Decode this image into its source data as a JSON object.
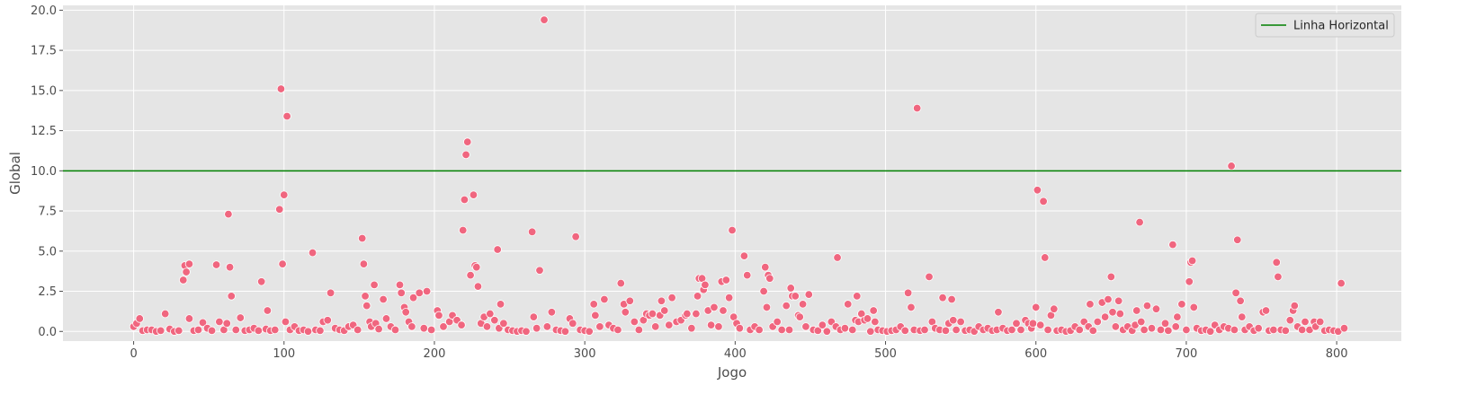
{
  "colors": {
    "background": "#e5e5e5",
    "grid": "#ffffff",
    "points": "#f0667f",
    "hline": "#008000"
  },
  "chart_data": {
    "type": "scatter",
    "xlabel": "Jogo",
    "ylabel": "Global",
    "xlim": [
      -47,
      843
    ],
    "ylim": [
      -0.6,
      20.3
    ],
    "xticks": [
      0,
      100,
      200,
      300,
      400,
      500,
      600,
      700,
      800
    ],
    "yticks": [
      0.0,
      2.5,
      5.0,
      7.5,
      10.0,
      12.5,
      15.0,
      17.5,
      20.0
    ],
    "ytick_labels": [
      "0.0",
      "2.5",
      "5.0",
      "7.5",
      "10.0",
      "12.5",
      "15.0",
      "17.5",
      "20.0"
    ],
    "grid": true,
    "legend": {
      "position": "top-right",
      "entries": [
        {
          "label": "Linha Horizontal",
          "type": "line"
        }
      ]
    },
    "hline": {
      "y": 10,
      "label": "Linha Horizontal"
    },
    "points": [
      [
        0,
        0.3
      ],
      [
        2,
        0.5
      ],
      [
        4,
        0.8
      ],
      [
        6,
        0.05
      ],
      [
        9,
        0.1
      ],
      [
        12,
        0.1
      ],
      [
        15,
        0.0
      ],
      [
        18,
        0.05
      ],
      [
        21,
        1.1
      ],
      [
        24,
        0.15
      ],
      [
        27,
        0.0
      ],
      [
        30,
        0.05
      ],
      [
        33,
        3.2
      ],
      [
        34,
        4.1
      ],
      [
        35,
        3.7
      ],
      [
        37,
        4.2
      ],
      [
        37,
        0.8
      ],
      [
        40,
        0.05
      ],
      [
        43,
        0.1
      ],
      [
        46,
        0.55
      ],
      [
        49,
        0.2
      ],
      [
        52,
        0.05
      ],
      [
        55,
        4.15
      ],
      [
        57,
        0.6
      ],
      [
        60,
        0.1
      ],
      [
        62,
        0.5
      ],
      [
        63,
        7.3
      ],
      [
        64,
        4.0
      ],
      [
        65,
        2.2
      ],
      [
        68,
        0.1
      ],
      [
        71,
        0.85
      ],
      [
        74,
        0.05
      ],
      [
        77,
        0.1
      ],
      [
        80,
        0.2
      ],
      [
        83,
        0.05
      ],
      [
        85,
        3.1
      ],
      [
        88,
        0.15
      ],
      [
        89,
        1.3
      ],
      [
        91,
        0.05
      ],
      [
        94,
        0.1
      ],
      [
        97,
        7.6
      ],
      [
        98,
        15.1
      ],
      [
        99,
        4.2
      ],
      [
        100,
        8.5
      ],
      [
        101,
        0.6
      ],
      [
        102,
        13.4
      ],
      [
        104,
        0.1
      ],
      [
        107,
        0.3
      ],
      [
        110,
        0.05
      ],
      [
        113,
        0.1
      ],
      [
        116,
        0.0
      ],
      [
        119,
        4.9
      ],
      [
        121,
        0.1
      ],
      [
        124,
        0.05
      ],
      [
        126,
        0.6
      ],
      [
        129,
        0.7
      ],
      [
        131,
        2.4
      ],
      [
        134,
        0.2
      ],
      [
        137,
        0.1
      ],
      [
        140,
        0.05
      ],
      [
        143,
        0.3
      ],
      [
        146,
        0.4
      ],
      [
        149,
        0.1
      ],
      [
        152,
        5.8
      ],
      [
        153,
        4.2
      ],
      [
        154,
        2.2
      ],
      [
        155,
        1.6
      ],
      [
        157,
        0.6
      ],
      [
        158,
        0.3
      ],
      [
        160,
        2.9
      ],
      [
        161,
        0.5
      ],
      [
        163,
        0.15
      ],
      [
        166,
        2.0
      ],
      [
        168,
        0.8
      ],
      [
        171,
        0.3
      ],
      [
        174,
        0.1
      ],
      [
        177,
        2.9
      ],
      [
        178,
        2.4
      ],
      [
        180,
        1.5
      ],
      [
        181,
        1.2
      ],
      [
        183,
        0.6
      ],
      [
        185,
        0.3
      ],
      [
        186,
        2.1
      ],
      [
        190,
        2.4
      ],
      [
        193,
        0.2
      ],
      [
        195,
        2.5
      ],
      [
        198,
        0.1
      ],
      [
        202,
        1.3
      ],
      [
        203,
        1.0
      ],
      [
        206,
        0.3
      ],
      [
        210,
        0.6
      ],
      [
        212,
        1.0
      ],
      [
        215,
        0.7
      ],
      [
        218,
        0.4
      ],
      [
        219,
        6.3
      ],
      [
        220,
        8.2
      ],
      [
        221,
        11.0
      ],
      [
        222,
        11.8
      ],
      [
        224,
        3.5
      ],
      [
        226,
        8.5
      ],
      [
        227,
        4.1
      ],
      [
        228,
        4.0
      ],
      [
        229,
        2.8
      ],
      [
        231,
        0.5
      ],
      [
        233,
        0.9
      ],
      [
        235,
        0.3
      ],
      [
        237,
        1.1
      ],
      [
        240,
        0.7
      ],
      [
        242,
        5.1
      ],
      [
        243,
        0.2
      ],
      [
        244,
        1.7
      ],
      [
        246,
        0.5
      ],
      [
        249,
        0.1
      ],
      [
        252,
        0.05
      ],
      [
        255,
        0.0
      ],
      [
        258,
        0.05
      ],
      [
        261,
        0.0
      ],
      [
        265,
        6.2
      ],
      [
        266,
        0.9
      ],
      [
        268,
        0.2
      ],
      [
        270,
        3.8
      ],
      [
        273,
        19.4
      ],
      [
        275,
        0.3
      ],
      [
        278,
        1.2
      ],
      [
        281,
        0.1
      ],
      [
        284,
        0.05
      ],
      [
        287,
        0.0
      ],
      [
        290,
        0.8
      ],
      [
        292,
        0.5
      ],
      [
        294,
        5.9
      ],
      [
        297,
        0.1
      ],
      [
        300,
        0.05
      ],
      [
        303,
        0.0
      ],
      [
        306,
        1.7
      ],
      [
        307,
        1.0
      ],
      [
        310,
        0.3
      ],
      [
        313,
        2.0
      ],
      [
        316,
        0.4
      ],
      [
        319,
        0.2
      ],
      [
        322,
        0.1
      ],
      [
        324,
        3.0
      ],
      [
        326,
        1.7
      ],
      [
        327,
        1.2
      ],
      [
        330,
        1.9
      ],
      [
        333,
        0.6
      ],
      [
        336,
        0.1
      ],
      [
        339,
        0.7
      ],
      [
        341,
        1.1
      ],
      [
        343,
        1.0
      ],
      [
        345,
        1.1
      ],
      [
        347,
        0.3
      ],
      [
        350,
        1.0
      ],
      [
        351,
        1.9
      ],
      [
        353,
        1.3
      ],
      [
        356,
        0.4
      ],
      [
        358,
        2.1
      ],
      [
        361,
        0.6
      ],
      [
        364,
        0.7
      ],
      [
        367,
        1.0
      ],
      [
        368,
        1.1
      ],
      [
        371,
        0.2
      ],
      [
        374,
        1.1
      ],
      [
        375,
        2.2
      ],
      [
        376,
        3.3
      ],
      [
        378,
        3.3
      ],
      [
        379,
        2.6
      ],
      [
        380,
        2.9
      ],
      [
        382,
        1.3
      ],
      [
        384,
        0.4
      ],
      [
        386,
        1.5
      ],
      [
        389,
        0.3
      ],
      [
        391,
        3.1
      ],
      [
        392,
        1.3
      ],
      [
        394,
        3.2
      ],
      [
        396,
        2.1
      ],
      [
        398,
        6.3
      ],
      [
        399,
        0.9
      ],
      [
        401,
        0.5
      ],
      [
        403,
        0.2
      ],
      [
        406,
        4.7
      ],
      [
        408,
        3.5
      ],
      [
        410,
        0.1
      ],
      [
        413,
        0.3
      ],
      [
        416,
        0.1
      ],
      [
        419,
        2.5
      ],
      [
        420,
        4.0
      ],
      [
        421,
        1.5
      ],
      [
        422,
        3.5
      ],
      [
        423,
        3.3
      ],
      [
        425,
        0.3
      ],
      [
        428,
        0.6
      ],
      [
        431,
        0.1
      ],
      [
        434,
        1.6
      ],
      [
        436,
        0.1
      ],
      [
        437,
        2.7
      ],
      [
        438,
        2.2
      ],
      [
        440,
        2.2
      ],
      [
        442,
        1.0
      ],
      [
        443,
        0.9
      ],
      [
        445,
        1.7
      ],
      [
        447,
        0.3
      ],
      [
        449,
        2.3
      ],
      [
        452,
        0.1
      ],
      [
        455,
        0.05
      ],
      [
        458,
        0.4
      ],
      [
        461,
        0.0
      ],
      [
        464,
        0.6
      ],
      [
        467,
        0.3
      ],
      [
        468,
        4.6
      ],
      [
        470,
        0.1
      ],
      [
        473,
        0.2
      ],
      [
        475,
        1.7
      ],
      [
        478,
        0.1
      ],
      [
        480,
        0.7
      ],
      [
        481,
        2.2
      ],
      [
        482,
        0.6
      ],
      [
        484,
        1.1
      ],
      [
        486,
        0.7
      ],
      [
        488,
        0.8
      ],
      [
        490,
        0.0
      ],
      [
        492,
        1.3
      ],
      [
        493,
        0.6
      ],
      [
        495,
        0.1
      ],
      [
        498,
        0.05
      ],
      [
        501,
        0.0
      ],
      [
        504,
        0.05
      ],
      [
        507,
        0.1
      ],
      [
        510,
        0.3
      ],
      [
        513,
        0.05
      ],
      [
        515,
        2.4
      ],
      [
        517,
        1.5
      ],
      [
        519,
        0.1
      ],
      [
        521,
        13.9
      ],
      [
        523,
        0.05
      ],
      [
        526,
        0.1
      ],
      [
        529,
        3.4
      ],
      [
        531,
        0.6
      ],
      [
        533,
        0.2
      ],
      [
        536,
        0.1
      ],
      [
        538,
        2.1
      ],
      [
        540,
        0.05
      ],
      [
        542,
        0.5
      ],
      [
        544,
        2.0
      ],
      [
        545,
        0.7
      ],
      [
        547,
        0.1
      ],
      [
        550,
        0.6
      ],
      [
        553,
        0.05
      ],
      [
        556,
        0.1
      ],
      [
        559,
        0.0
      ],
      [
        562,
        0.3
      ],
      [
        565,
        0.1
      ],
      [
        568,
        0.2
      ],
      [
        571,
        0.05
      ],
      [
        574,
        0.1
      ],
      [
        575,
        1.2
      ],
      [
        578,
        0.2
      ],
      [
        581,
        0.05
      ],
      [
        584,
        0.1
      ],
      [
        587,
        0.5
      ],
      [
        590,
        0.1
      ],
      [
        593,
        0.7
      ],
      [
        595,
        0.5
      ],
      [
        597,
        0.2
      ],
      [
        598,
        0.5
      ],
      [
        600,
        1.5
      ],
      [
        601,
        8.8
      ],
      [
        603,
        0.4
      ],
      [
        605,
        8.1
      ],
      [
        606,
        4.6
      ],
      [
        608,
        0.1
      ],
      [
        610,
        1.0
      ],
      [
        612,
        1.4
      ],
      [
        614,
        0.05
      ],
      [
        617,
        0.1
      ],
      [
        620,
        0.0
      ],
      [
        623,
        0.05
      ],
      [
        626,
        0.3
      ],
      [
        629,
        0.1
      ],
      [
        632,
        0.6
      ],
      [
        635,
        0.3
      ],
      [
        636,
        1.7
      ],
      [
        638,
        0.05
      ],
      [
        641,
        0.6
      ],
      [
        644,
        1.8
      ],
      [
        646,
        0.9
      ],
      [
        648,
        2.0
      ],
      [
        650,
        3.4
      ],
      [
        651,
        1.2
      ],
      [
        653,
        0.3
      ],
      [
        655,
        1.9
      ],
      [
        656,
        1.1
      ],
      [
        658,
        0.1
      ],
      [
        661,
        0.3
      ],
      [
        664,
        0.05
      ],
      [
        666,
        0.4
      ],
      [
        667,
        1.3
      ],
      [
        669,
        6.8
      ],
      [
        670,
        0.6
      ],
      [
        672,
        0.1
      ],
      [
        674,
        1.6
      ],
      [
        677,
        0.2
      ],
      [
        680,
        1.4
      ],
      [
        683,
        0.1
      ],
      [
        686,
        0.5
      ],
      [
        688,
        0.05
      ],
      [
        691,
        5.4
      ],
      [
        693,
        0.3
      ],
      [
        694,
        0.9
      ],
      [
        697,
        1.7
      ],
      [
        700,
        0.1
      ],
      [
        702,
        3.1
      ],
      [
        703,
        4.3
      ],
      [
        704,
        4.4
      ],
      [
        705,
        1.5
      ],
      [
        707,
        0.2
      ],
      [
        710,
        0.05
      ],
      [
        713,
        0.1
      ],
      [
        716,
        0.0
      ],
      [
        719,
        0.4
      ],
      [
        722,
        0.1
      ],
      [
        725,
        0.3
      ],
      [
        728,
        0.2
      ],
      [
        730,
        10.3
      ],
      [
        732,
        0.1
      ],
      [
        733,
        2.4
      ],
      [
        734,
        5.7
      ],
      [
        736,
        1.9
      ],
      [
        737,
        0.9
      ],
      [
        739,
        0.1
      ],
      [
        742,
        0.3
      ],
      [
        745,
        0.05
      ],
      [
        748,
        0.2
      ],
      [
        751,
        1.2
      ],
      [
        753,
        1.3
      ],
      [
        755,
        0.05
      ],
      [
        758,
        0.1
      ],
      [
        760,
        4.3
      ],
      [
        761,
        3.4
      ],
      [
        763,
        0.1
      ],
      [
        766,
        0.05
      ],
      [
        769,
        0.7
      ],
      [
        771,
        1.3
      ],
      [
        772,
        1.6
      ],
      [
        774,
        0.3
      ],
      [
        777,
        0.1
      ],
      [
        779,
        0.6
      ],
      [
        782,
        0.1
      ],
      [
        785,
        0.6
      ],
      [
        786,
        0.3
      ],
      [
        789,
        0.6
      ],
      [
        792,
        0.05
      ],
      [
        795,
        0.1
      ],
      [
        798,
        0.05
      ],
      [
        801,
        0.0
      ],
      [
        803,
        3.0
      ],
      [
        805,
        0.2
      ]
    ]
  }
}
